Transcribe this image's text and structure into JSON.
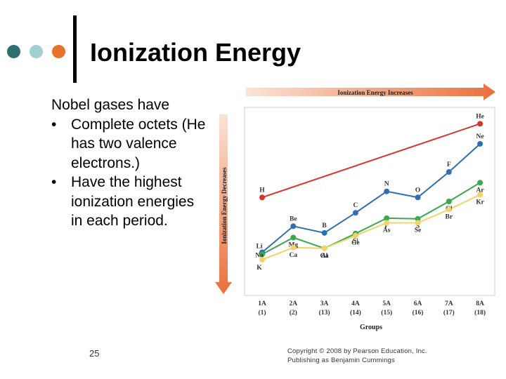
{
  "slide": {
    "title": "Ionization Energy",
    "lead": "Nobel gases have",
    "bullets": [
      "Complete octets (He has two valence electrons.)",
      "Have the highest ionization energies in each period."
    ],
    "page_number": "25",
    "copyright_line1": "Copyright © 2008 by Pearson Education, Inc.",
    "copyright_line2": "Publishing as Benjamin Cummings",
    "dot_colors": [
      "#2f6f6f",
      "#9fcfcf",
      "#e8722b"
    ]
  },
  "chart_data": {
    "type": "line",
    "top_arrow_label": "Ionization Energy Increases",
    "side_arrow_label": "Ionization Energy Decreases",
    "xlabel": "Groups",
    "categories": [
      "1A (1)",
      "2A (2)",
      "3A (13)",
      "4A (14)",
      "5A (15)",
      "6A (16)",
      "7A (17)",
      "8A (18)"
    ],
    "category_labels": [
      {
        "group": "1A",
        "number": "(1)"
      },
      {
        "group": "2A",
        "number": "(2)"
      },
      {
        "group": "3A",
        "number": "(13)"
      },
      {
        "group": "4A",
        "number": "(14)"
      },
      {
        "group": "5A",
        "number": "(15)"
      },
      {
        "group": "6A",
        "number": "(16)"
      },
      {
        "group": "7A",
        "number": "(17)"
      },
      {
        "group": "8A",
        "number": "(18)"
      }
    ],
    "ylim": [
      0,
      26
    ],
    "series": [
      {
        "color": "#d9342b",
        "points": [
          {
            "x": 0,
            "y": 13.6,
            "label": "H"
          },
          {
            "x": 7,
            "y": 24.6,
            "label": "He"
          }
        ]
      },
      {
        "color": "#2f6db5",
        "points": [
          {
            "x": 0,
            "y": 5.4,
            "label": "Li"
          },
          {
            "x": 1,
            "y": 9.3,
            "label": "Be"
          },
          {
            "x": 2,
            "y": 8.3,
            "label": "B"
          },
          {
            "x": 3,
            "y": 11.3,
            "label": "C"
          },
          {
            "x": 4,
            "y": 14.5,
            "label": "N"
          },
          {
            "x": 5,
            "y": 13.6,
            "label": "O"
          },
          {
            "x": 6,
            "y": 17.4,
            "label": "F"
          },
          {
            "x": 7,
            "y": 21.6,
            "label": "Ne"
          }
        ]
      },
      {
        "color": "#3aa84d",
        "points": [
          {
            "x": 0,
            "y": 5.1,
            "label": "Na"
          },
          {
            "x": 1,
            "y": 7.6,
            "label": "Mg"
          },
          {
            "x": 2,
            "y": 6.0,
            "label": "Al"
          },
          {
            "x": 3,
            "y": 8.2,
            "label": "Si"
          },
          {
            "x": 4,
            "y": 10.5,
            "label": "P"
          },
          {
            "x": 5,
            "y": 10.4,
            "label": "S"
          },
          {
            "x": 6,
            "y": 13.0,
            "label": "Cl"
          },
          {
            "x": 7,
            "y": 15.8,
            "label": "Ar"
          }
        ]
      },
      {
        "color": "#f2d36b",
        "points": [
          {
            "x": 0,
            "y": 4.3,
            "label": "K"
          },
          {
            "x": 1,
            "y": 6.1,
            "label": "Ca"
          },
          {
            "x": 2,
            "y": 6.0,
            "label": "Ga"
          },
          {
            "x": 3,
            "y": 7.9,
            "label": "Ge"
          },
          {
            "x": 4,
            "y": 9.8,
            "label": "As"
          },
          {
            "x": 5,
            "y": 9.8,
            "label": "Se"
          },
          {
            "x": 6,
            "y": 11.8,
            "label": "Br"
          },
          {
            "x": 7,
            "y": 14.0,
            "label": "Kr"
          }
        ]
      }
    ]
  }
}
